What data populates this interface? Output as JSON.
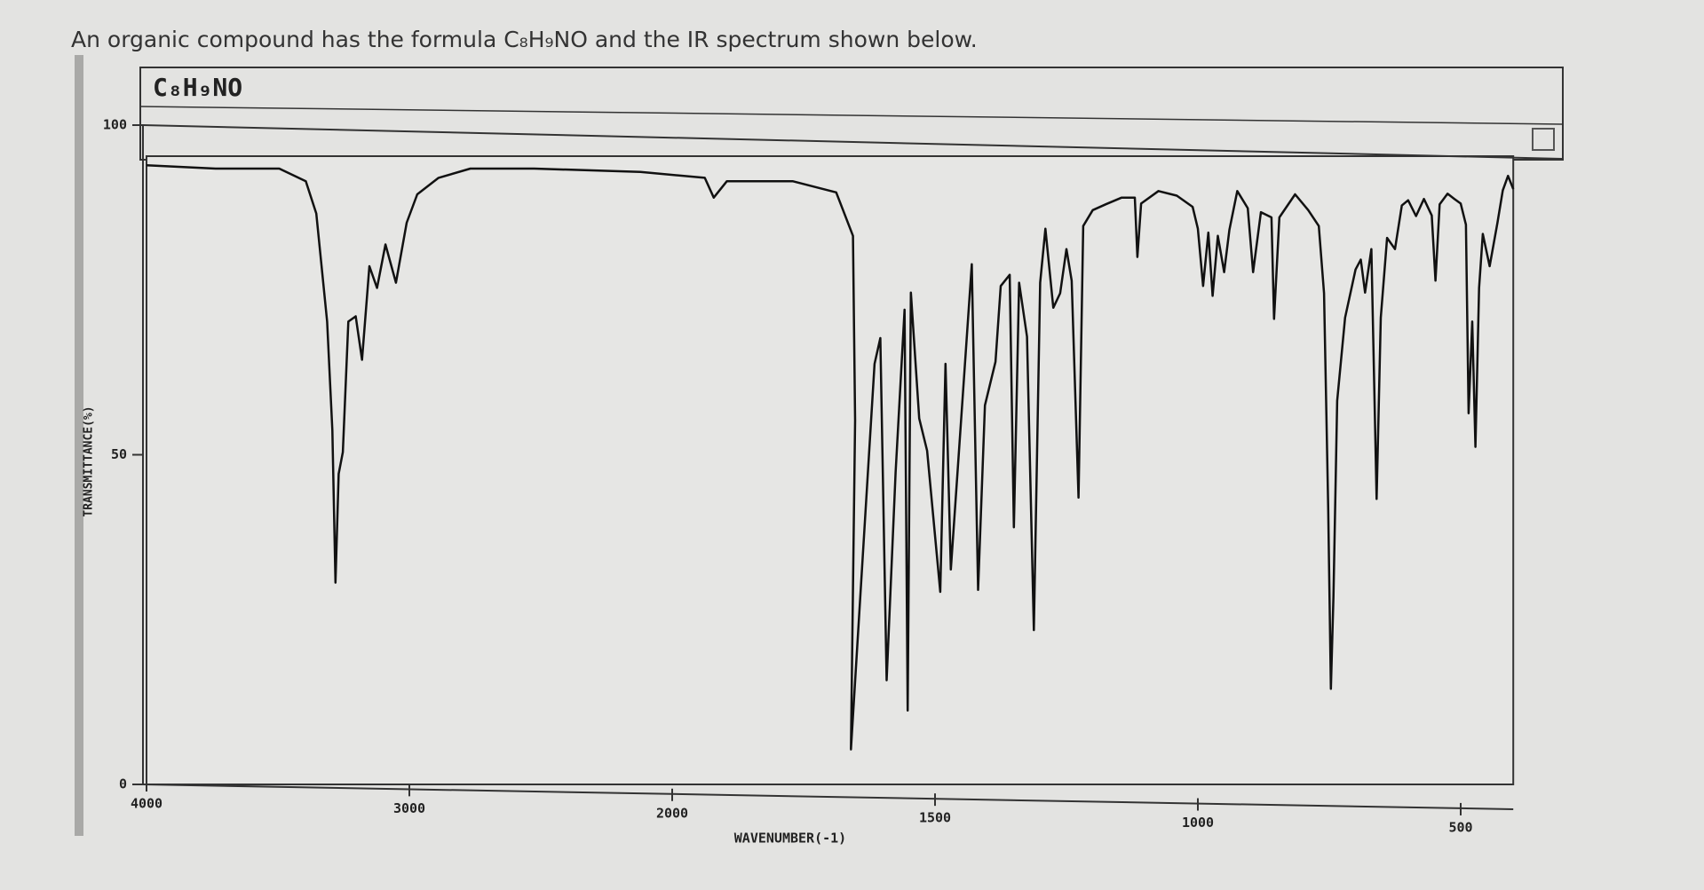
{
  "question": "An organic compound has the formula C₈H₉NO and the IR spectrum shown below.",
  "chart_data": {
    "type": "line",
    "title": "C₈H₉NO",
    "x_label": "WAVENUMBER(-1)",
    "y_label": "TRANSMITTANCE(%)",
    "color": "#111111",
    "x": [
      4000,
      3737,
      3495,
      3394,
      3354,
      3313,
      3293,
      3281,
      3269,
      3253,
      3232,
      3204,
      3180,
      3152,
      3123,
      3091,
      3051,
      3010,
      2970,
      2889,
      2768,
      2525,
      2121,
      1938,
      1921,
      1896,
      1771,
      1688,
      1656,
      1652,
      1660,
      1615,
      1604,
      1592,
      1575,
      1558,
      1552,
      1546,
      1530,
      1515,
      1490,
      1480,
      1470,
      1450,
      1430,
      1418,
      1405,
      1385,
      1375,
      1358,
      1350,
      1340,
      1325,
      1312,
      1300,
      1290,
      1275,
      1262,
      1250,
      1240,
      1227,
      1218,
      1200,
      1175,
      1145,
      1120,
      1115,
      1108,
      1075,
      1040,
      1010,
      1000,
      990,
      980,
      972,
      962,
      950,
      940,
      925,
      905,
      895,
      880,
      860,
      855,
      845,
      815,
      790,
      770,
      760,
      752,
      747,
      742,
      735,
      720,
      700,
      690,
      682,
      670,
      660,
      652,
      640,
      625,
      612,
      600,
      585,
      570,
      555,
      548,
      540,
      525,
      512,
      500,
      490,
      485,
      478,
      472,
      465,
      458,
      445,
      430,
      420,
      410,
      400
    ],
    "values": [
      93.9,
      93.4,
      93.4,
      91.5,
      86.6,
      70.2,
      53.7,
      30.6,
      47.1,
      50.4,
      70.2,
      71,
      64.4,
      78.6,
      75.3,
      81.9,
      76.1,
      85.2,
      89.5,
      92,
      93.4,
      93.4,
      92.9,
      92,
      89,
      91.5,
      91.5,
      89.8,
      83.2,
      55.2,
      5.3,
      63.8,
      67.7,
      15.8,
      47.3,
      72,
      11.2,
      74.6,
      55.5,
      50.6,
      29.2,
      63.8,
      32.6,
      55.7,
      78.9,
      29.5,
      57.5,
      64.1,
      75.6,
      77.3,
      39,
      76.1,
      67.9,
      23.4,
      76.1,
      84.3,
      72.3,
      74.5,
      81.2,
      76.4,
      43.5,
      84.7,
      87.1,
      88,
      89,
      89,
      80,
      88.1,
      90,
      89.3,
      87.6,
      84.3,
      75.6,
      83.7,
      74.1,
      83.2,
      77.7,
      84.1,
      90,
      87.4,
      77.7,
      86.8,
      86,
      70.6,
      86,
      89.5,
      87.1,
      84.7,
      74.5,
      41.8,
      14.5,
      28.5,
      58.2,
      70.8,
      78.1,
      79.6,
      74.6,
      81.2,
      43.3,
      70.8,
      82.9,
      81.2,
      87.8,
      88.6,
      86.2,
      88.8,
      86.3,
      76.4,
      88,
      89.6,
      88.8,
      88.1,
      84.9,
      56.3,
      70.2,
      51.2,
      75.3,
      83.5,
      78.6,
      85.2,
      90.1,
      92.3,
      90.3
    ],
    "xlim": [
      4000,
      400
    ],
    "xticks": [
      4000,
      3000,
      2000,
      1500,
      1000,
      500
    ],
    "ylim": [
      0,
      100
    ],
    "yticks": [
      0,
      50,
      100
    ]
  }
}
